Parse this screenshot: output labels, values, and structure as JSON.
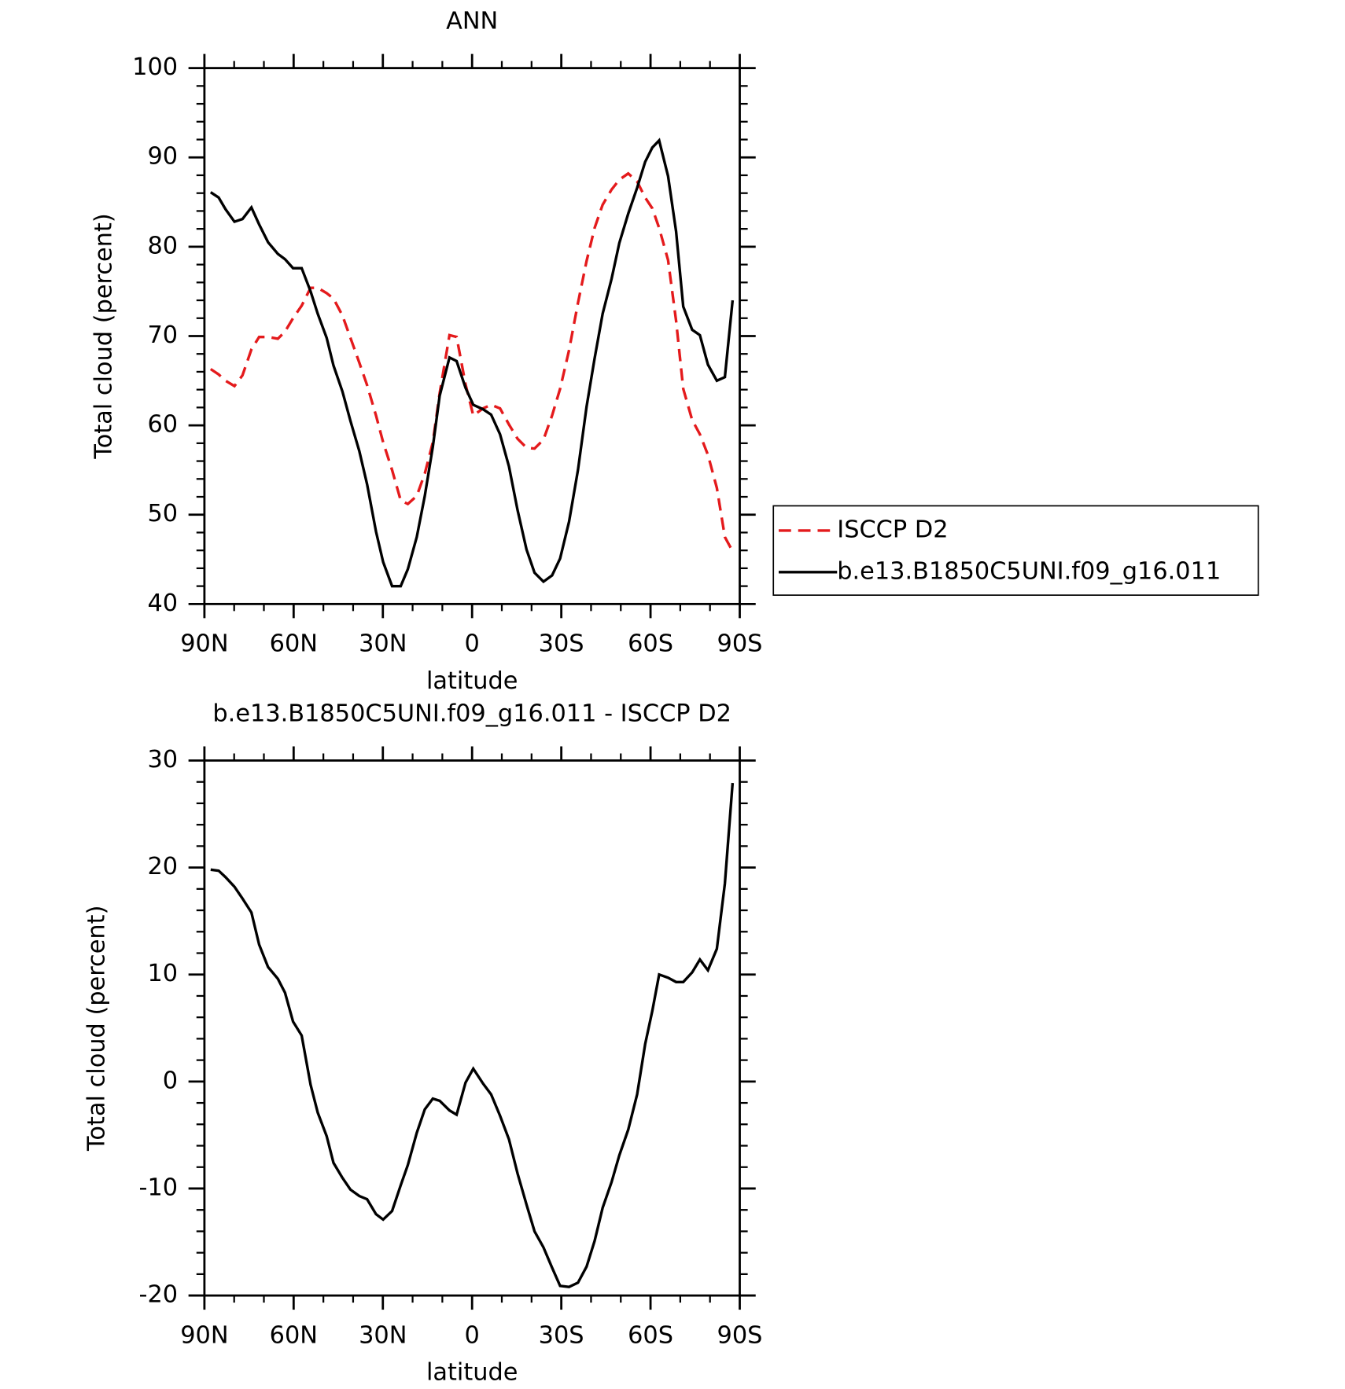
{
  "chart_data": [
    {
      "type": "line",
      "title": "ANN",
      "xlabel": "latitude",
      "ylabel": "Total cloud (percent)",
      "x": [
        87.9,
        85.2,
        82.9,
        79.9,
        77.2,
        74.2,
        71.6,
        68.6,
        65.3,
        62.9,
        60.2,
        57.3,
        54.3,
        51.9,
        48.9,
        46.6,
        43.6,
        40.9,
        37.9,
        35.3,
        32.3,
        29.9,
        26.9,
        24,
        21.6,
        18.6,
        15.9,
        13.2,
        10.9,
        7.6,
        5.2,
        2.2,
        -0.4,
        -3.7,
        -6.4,
        -9.4,
        -12.4,
        -15.3,
        -18.3,
        -21,
        -24,
        -26.9,
        -29.6,
        -32.6,
        -35.6,
        -38.5,
        -41.2,
        -43.9,
        -46.9,
        -49.5,
        -52.5,
        -55.5,
        -58.2,
        -60.6,
        -62.9,
        -65.9,
        -68.6,
        -71,
        -74,
        -76.6,
        -79.3,
        -82.3,
        -85,
        -87.6
      ],
      "series": [
        {
          "name": "ISCCP D2",
          "color": "#e41a1c",
          "linestyle": "dashed",
          "values": [
            66.3,
            65.7,
            65,
            64.4,
            65.6,
            68.5,
            69.9,
            69.9,
            69.7,
            70.5,
            72,
            73.4,
            75.4,
            75.4,
            74.8,
            74.2,
            72.3,
            69.8,
            67,
            64.5,
            61.1,
            58.1,
            55,
            51.6,
            51.2,
            52.1,
            54.6,
            58.1,
            63.6,
            70.1,
            69.9,
            64.6,
            61.1,
            61.9,
            62.3,
            61.9,
            60.1,
            58.5,
            57.5,
            57.4,
            58.4,
            61.1,
            64.1,
            68.4,
            73.7,
            78.4,
            82.1,
            84.7,
            86.4,
            87.5,
            88.2,
            87.3,
            85.5,
            84.3,
            82.1,
            78.5,
            71.7,
            64.1,
            60.6,
            59,
            56.7,
            53,
            47.5,
            45.9
          ]
        },
        {
          "name": "b.e13.B1850C5UNI.f09_g16.011",
          "color": "#000000",
          "linestyle": "solid",
          "values": [
            86.1,
            85.5,
            84.2,
            82.8,
            83.1,
            84.4,
            82.5,
            80.5,
            79.2,
            78.6,
            77.6,
            77.6,
            75,
            72.5,
            69.8,
            66.7,
            63.8,
            60.5,
            57.1,
            53.4,
            48.1,
            44.7,
            42,
            42,
            43.9,
            47.5,
            52.1,
            57.6,
            63.3,
            67.6,
            67.2,
            64.2,
            62.3,
            61.8,
            61.2,
            59,
            55.4,
            50.5,
            46.1,
            43.5,
            42.5,
            43.2,
            45.1,
            49.2,
            55,
            62.1,
            67.5,
            72.5,
            76.4,
            80.4,
            83.7,
            86.6,
            89.5,
            91.1,
            91.9,
            87.9,
            81.7,
            73.3,
            70.7,
            70.1,
            66.8,
            65,
            65.4,
            74
          ]
        }
      ],
      "xlim": [
        90,
        -90
      ],
      "xticks": [
        {
          "value": 90,
          "label": "90N"
        },
        {
          "value": 60,
          "label": "60N"
        },
        {
          "value": 30,
          "label": "30N"
        },
        0,
        {
          "value": -30,
          "label": "30S"
        },
        {
          "value": -60,
          "label": "60S"
        },
        {
          "value": -90,
          "label": "90S"
        }
      ],
      "ylim": [
        40,
        100
      ],
      "yticks": [
        40,
        50,
        60,
        70,
        80,
        90,
        100
      ],
      "legend": "right"
    },
    {
      "type": "line",
      "title": "b.e13.B1850C5UNI.f09_g16.011 - ISCCP D2",
      "xlabel": "latitude",
      "ylabel": "Total cloud (percent)",
      "x": [
        87.9,
        85.2,
        82.9,
        79.9,
        77.2,
        74.2,
        71.6,
        68.6,
        65.3,
        62.9,
        60.2,
        57.3,
        54.3,
        51.9,
        48.9,
        46.6,
        43.6,
        40.9,
        37.9,
        35.3,
        32.3,
        29.9,
        26.9,
        24,
        21.6,
        18.6,
        15.9,
        13.2,
        10.9,
        7.6,
        5.2,
        2.2,
        -0.4,
        -3.7,
        -6.4,
        -9.4,
        -12.4,
        -15.3,
        -18.3,
        -21,
        -24,
        -26.9,
        -29.6,
        -32.6,
        -35.6,
        -38.5,
        -41.2,
        -43.9,
        -46.9,
        -49.5,
        -52.5,
        -55.5,
        -58.2,
        -60.6,
        -62.9,
        -65.9,
        -68.6,
        -71,
        -74,
        -76.6,
        -79.3,
        -82.3,
        -85,
        -87.6
      ],
      "series": [
        {
          "color": "#000000",
          "linestyle": "solid",
          "values": [
            19.8,
            19.7,
            19.1,
            18.2,
            17.1,
            15.8,
            12.8,
            10.7,
            9.6,
            8.3,
            5.6,
            4.3,
            -0.3,
            -2.9,
            -5.1,
            -7.6,
            -9,
            -10.1,
            -10.7,
            -11,
            -12.4,
            -12.9,
            -12.1,
            -9.7,
            -7.8,
            -4.8,
            -2.6,
            -1.6,
            -1.8,
            -2.7,
            -3.1,
            -0.1,
            1.2,
            -0.2,
            -1.2,
            -3.2,
            -5.4,
            -8.6,
            -11.5,
            -14,
            -15.5,
            -17.4,
            -19.1,
            -19.2,
            -18.8,
            -17.3,
            -14.9,
            -11.8,
            -9.4,
            -6.9,
            -4.5,
            -1.2,
            3.5,
            6.6,
            10,
            9.7,
            9.3,
            9.3,
            10.2,
            11.4,
            10.4,
            12.4,
            18.5,
            27.9
          ]
        }
      ],
      "xlim": [
        90,
        -90
      ],
      "xticks": [
        {
          "value": 90,
          "label": "90N"
        },
        {
          "value": 60,
          "label": "60N"
        },
        {
          "value": 30,
          "label": "30N"
        },
        0,
        {
          "value": -30,
          "label": "30S"
        },
        {
          "value": -60,
          "label": "60S"
        },
        {
          "value": -90,
          "label": "90S"
        }
      ],
      "ylim": [
        -20,
        30
      ],
      "yticks": [
        -20,
        -10,
        0,
        10,
        20,
        30
      ]
    }
  ]
}
